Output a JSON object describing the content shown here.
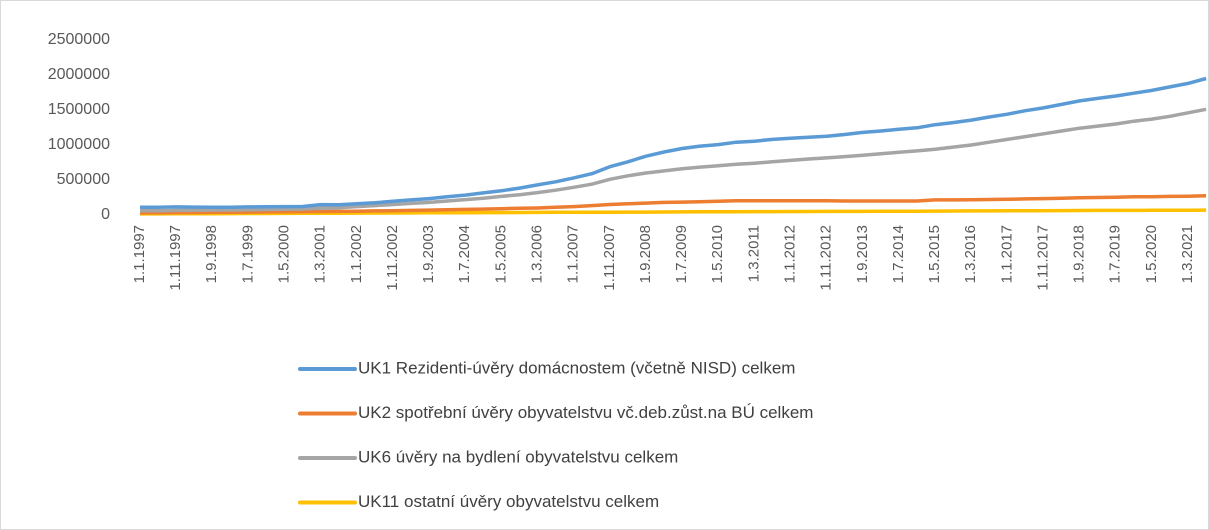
{
  "chart_data": {
    "type": "line",
    "categories": [
      "1.1.1997",
      null,
      "1.11.1997",
      null,
      "1.9.1998",
      null,
      "1.7.1999",
      null,
      "1.5.2000",
      null,
      "1.3.2001",
      null,
      "1.1.2002",
      null,
      "1.11.2002",
      null,
      "1.9.2003",
      null,
      "1.7.2004",
      null,
      "1.5.2005",
      null,
      "1.3.2006",
      null,
      "1.1.2007",
      null,
      "1.11.2007",
      null,
      "1.9.2008",
      null,
      "1.7.2009",
      null,
      "1.5.2010",
      null,
      "1.3.2011",
      null,
      "1.1.2012",
      null,
      "1.11.2012",
      null,
      "1.9.2013",
      null,
      "1.7.2014",
      null,
      "1.5.2015",
      null,
      "1.3.2016",
      null,
      "1.1.2017",
      null,
      "1.11.2017",
      null,
      "1.9.2018",
      null,
      "1.7.2019",
      null,
      "1.5.2020",
      null,
      "1.3.2021",
      null
    ],
    "series": [
      {
        "name": "UK1 Rezidenti-úvěry domácnostem (včetně NISD) celkem",
        "color": "#5b9bd5",
        "values": [
          110000,
          112000,
          115000,
          113000,
          112000,
          112000,
          115000,
          118000,
          120000,
          122000,
          148000,
          145000,
          160000,
          175000,
          195000,
          215000,
          235000,
          260000,
          285000,
          315000,
          345000,
          385000,
          430000,
          475000,
          530000,
          590000,
          690000,
          760000,
          840000,
          900000,
          950000,
          985000,
          1005000,
          1040000,
          1055000,
          1080000,
          1095000,
          1110000,
          1125000,
          1150000,
          1180000,
          1200000,
          1225000,
          1245000,
          1290000,
          1320000,
          1355000,
          1400000,
          1440000,
          1490000,
          1530000,
          1580000,
          1630000,
          1665000,
          1700000,
          1740000,
          1780000,
          1830000,
          1880000,
          1950000
        ]
      },
      {
        "name": "UK2 spotřební úvěry obyvatelstvu vč.deb.zůst.na BÚ celkem",
        "color": "#ed7d31",
        "values": [
          30000,
          32000,
          34000,
          36000,
          38000,
          40000,
          42000,
          44000,
          46000,
          48000,
          50000,
          52000,
          55000,
          58000,
          62000,
          66000,
          70000,
          75000,
          80000,
          85000,
          90000,
          95000,
          100000,
          110000,
          120000,
          135000,
          150000,
          160000,
          170000,
          180000,
          185000,
          190000,
          195000,
          205000,
          205000,
          205000,
          205000,
          205000,
          205000,
          200000,
          200000,
          200000,
          200000,
          200000,
          215000,
          215000,
          218000,
          222000,
          225000,
          230000,
          235000,
          240000,
          245000,
          250000,
          255000,
          260000,
          262000,
          265000,
          268000,
          275000
        ]
      },
      {
        "name": "UK6 úvěry na bydlení obyvatelstvu celkem",
        "color": "#a5a5a5",
        "values": [
          60000,
          62000,
          65000,
          67000,
          70000,
          72000,
          75000,
          78000,
          82000,
          86000,
          95000,
          105000,
          120000,
          135000,
          150000,
          165000,
          180000,
          200000,
          220000,
          240000,
          265000,
          290000,
          320000,
          355000,
          395000,
          440000,
          510000,
          560000,
          600000,
          630000,
          660000,
          685000,
          705000,
          725000,
          740000,
          760000,
          780000,
          800000,
          815000,
          835000,
          855000,
          875000,
          895000,
          915000,
          940000,
          970000,
          1000000,
          1040000,
          1080000,
          1120000,
          1160000,
          1200000,
          1240000,
          1270000,
          1300000,
          1340000,
          1370000,
          1410000,
          1460000,
          1510000
        ]
      },
      {
        "name": "UK11 ostatní úvěry obyvatelstvu celkem",
        "color": "#ffc000",
        "values": [
          15000,
          16000,
          17000,
          18000,
          19000,
          20000,
          21000,
          22000,
          23000,
          24000,
          25000,
          26000,
          27000,
          28000,
          29000,
          30000,
          31000,
          32000,
          33000,
          34000,
          35000,
          36000,
          37000,
          38000,
          39000,
          40000,
          40000,
          41000,
          42000,
          43000,
          44000,
          45000,
          46000,
          47000,
          48000,
          49000,
          50000,
          50000,
          51000,
          52000,
          52000,
          53000,
          54000,
          55000,
          56000,
          57000,
          58000,
          59000,
          60000,
          61000,
          62000,
          63000,
          64000,
          65000,
          65000,
          66000,
          67000,
          68000,
          69000,
          70000
        ]
      }
    ],
    "ylim": [
      0,
      2500000
    ],
    "yticks": [
      0,
      500000,
      1000000,
      1500000,
      2000000,
      2500000
    ],
    "grid": false,
    "legend": "bottom"
  }
}
